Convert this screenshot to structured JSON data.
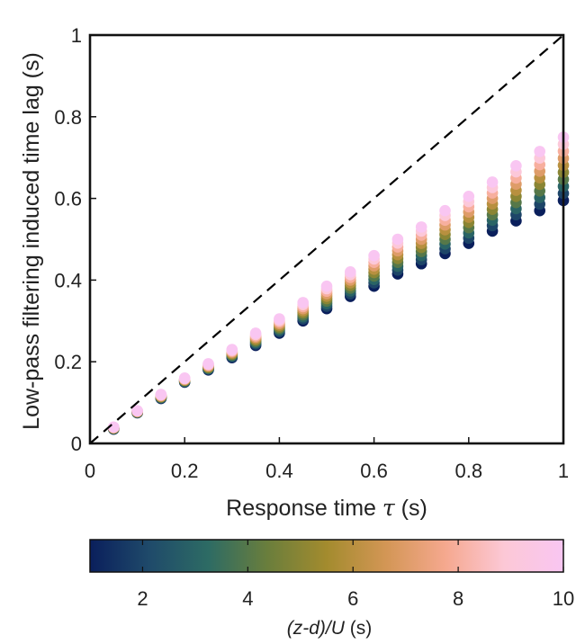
{
  "chart_data": {
    "type": "scatter",
    "xlabel": "Response time",
    "xlabel_symbol": "τ",
    "xlabel_unit": "(s)",
    "ylabel": "Low-pass filtering induced time lag (s)",
    "xlim": [
      0,
      1
    ],
    "ylim": [
      0,
      1
    ],
    "xticks": [
      "0",
      "0.2",
      "0.4",
      "0.6",
      "0.8",
      "1"
    ],
    "yticks": [
      "0",
      "0.2",
      "0.4",
      "0.6",
      "0.8",
      "1"
    ],
    "grid": false,
    "reference_line": {
      "style": "dashed",
      "from": [
        0,
        0
      ],
      "to": [
        1,
        1
      ]
    },
    "colorbar": {
      "label_italic": "(z-d)/U",
      "label_unit": "(s)",
      "range": [
        1,
        10
      ],
      "ticks": [
        "2",
        "4",
        "6",
        "8",
        "10"
      ],
      "colormap": [
        "#0a1f5c",
        "#1f4a6a",
        "#2d6b64",
        "#6a7e3c",
        "#a38b2e",
        "#d39655",
        "#f5a88e",
        "#fcc8d6",
        "#f9c6f2"
      ]
    },
    "series": [
      {
        "x": 0.05,
        "y_min": 0.035,
        "y_max": 0.04
      },
      {
        "x": 0.1,
        "y_min": 0.075,
        "y_max": 0.08
      },
      {
        "x": 0.15,
        "y_min": 0.11,
        "y_max": 0.12
      },
      {
        "x": 0.2,
        "y_min": 0.15,
        "y_max": 0.16
      },
      {
        "x": 0.25,
        "y_min": 0.18,
        "y_max": 0.195
      },
      {
        "x": 0.3,
        "y_min": 0.21,
        "y_max": 0.23
      },
      {
        "x": 0.35,
        "y_min": 0.24,
        "y_max": 0.27
      },
      {
        "x": 0.4,
        "y_min": 0.27,
        "y_max": 0.305
      },
      {
        "x": 0.45,
        "y_min": 0.3,
        "y_max": 0.345
      },
      {
        "x": 0.5,
        "y_min": 0.33,
        "y_max": 0.385
      },
      {
        "x": 0.55,
        "y_min": 0.36,
        "y_max": 0.42
      },
      {
        "x": 0.6,
        "y_min": 0.385,
        "y_max": 0.46
      },
      {
        "x": 0.65,
        "y_min": 0.415,
        "y_max": 0.5
      },
      {
        "x": 0.7,
        "y_min": 0.44,
        "y_max": 0.53
      },
      {
        "x": 0.75,
        "y_min": 0.465,
        "y_max": 0.57
      },
      {
        "x": 0.8,
        "y_min": 0.49,
        "y_max": 0.605
      },
      {
        "x": 0.85,
        "y_min": 0.52,
        "y_max": 0.64
      },
      {
        "x": 0.9,
        "y_min": 0.545,
        "y_max": 0.68
      },
      {
        "x": 0.95,
        "y_min": 0.57,
        "y_max": 0.715
      },
      {
        "x": 1.0,
        "y_min": 0.595,
        "y_max": 0.75
      }
    ]
  }
}
